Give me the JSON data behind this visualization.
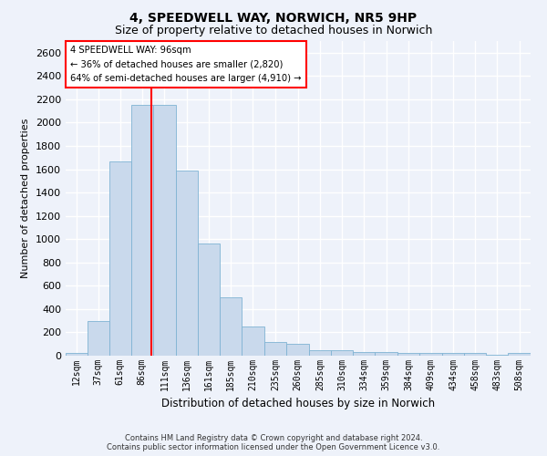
{
  "title": "4, SPEEDWELL WAY, NORWICH, NR5 9HP",
  "subtitle": "Size of property relative to detached houses in Norwich",
  "xlabel": "Distribution of detached houses by size in Norwich",
  "ylabel": "Number of detached properties",
  "footer_line1": "Contains HM Land Registry data © Crown copyright and database right 2024.",
  "footer_line2": "Contains public sector information licensed under the Open Government Licence v3.0.",
  "annotation_line1": "4 SPEEDWELL WAY: 96sqm",
  "annotation_line2": "← 36% of detached houses are smaller (2,820)",
  "annotation_line3": "64% of semi-detached houses are larger (4,910) →",
  "bar_color": "#c9d9ec",
  "bar_edge_color": "#7fb3d3",
  "ref_line_color": "red",
  "ref_line_x": 96,
  "categories": [
    "12sqm",
    "37sqm",
    "61sqm",
    "86sqm",
    "111sqm",
    "136sqm",
    "161sqm",
    "185sqm",
    "210sqm",
    "235sqm",
    "260sqm",
    "285sqm",
    "310sqm",
    "334sqm",
    "359sqm",
    "384sqm",
    "409sqm",
    "434sqm",
    "458sqm",
    "483sqm",
    "508sqm"
  ],
  "bin_edges": [
    0,
    24,
    49,
    73,
    98,
    123,
    148,
    172,
    197,
    222,
    247,
    272,
    297,
    321,
    346,
    371,
    396,
    421,
    446,
    470,
    495,
    520
  ],
  "values": [
    25,
    300,
    1670,
    2150,
    2150,
    1590,
    960,
    500,
    250,
    120,
    100,
    50,
    50,
    35,
    35,
    20,
    20,
    20,
    20,
    5,
    25
  ],
  "ylim": [
    0,
    2700
  ],
  "yticks": [
    0,
    200,
    400,
    600,
    800,
    1000,
    1200,
    1400,
    1600,
    1800,
    2000,
    2200,
    2400,
    2600
  ],
  "background_color": "#eef2fa",
  "grid_color": "#ffffff",
  "title_fontsize": 10,
  "subtitle_fontsize": 9,
  "ylabel_fontsize": 8,
  "xlabel_fontsize": 8.5,
  "ytick_fontsize": 8,
  "xtick_fontsize": 7
}
